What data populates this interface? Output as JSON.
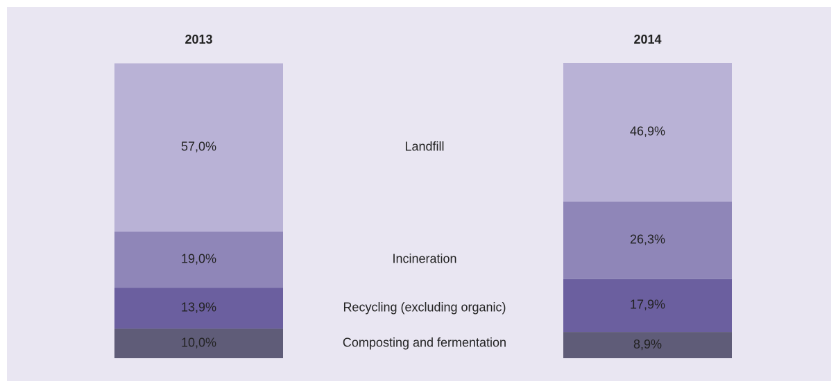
{
  "chart_data": {
    "type": "stacked-bar",
    "categories": [
      "2013",
      "2014"
    ],
    "series": [
      {
        "name": "Composting and fermentation",
        "color": "#5f5c78",
        "values": [
          10.0,
          8.9
        ],
        "value_labels": [
          "10,0%",
          "8,9%"
        ]
      },
      {
        "name": "Recycling (excluding organic)",
        "color": "#6b5f9f",
        "values": [
          13.9,
          17.9
        ],
        "value_labels": [
          "13,9%",
          "17,9%"
        ]
      },
      {
        "name": "Incineration",
        "color": "#8f86b8",
        "values": [
          19.0,
          26.3
        ],
        "value_labels": [
          "19,0%",
          "26,3%"
        ]
      },
      {
        "name": "Landfill",
        "color": "#b9b2d6",
        "values": [
          57.0,
          46.9
        ],
        "value_labels": [
          "57,0%",
          "46,9%"
        ]
      }
    ],
    "ylim": [
      0,
      100
    ]
  }
}
